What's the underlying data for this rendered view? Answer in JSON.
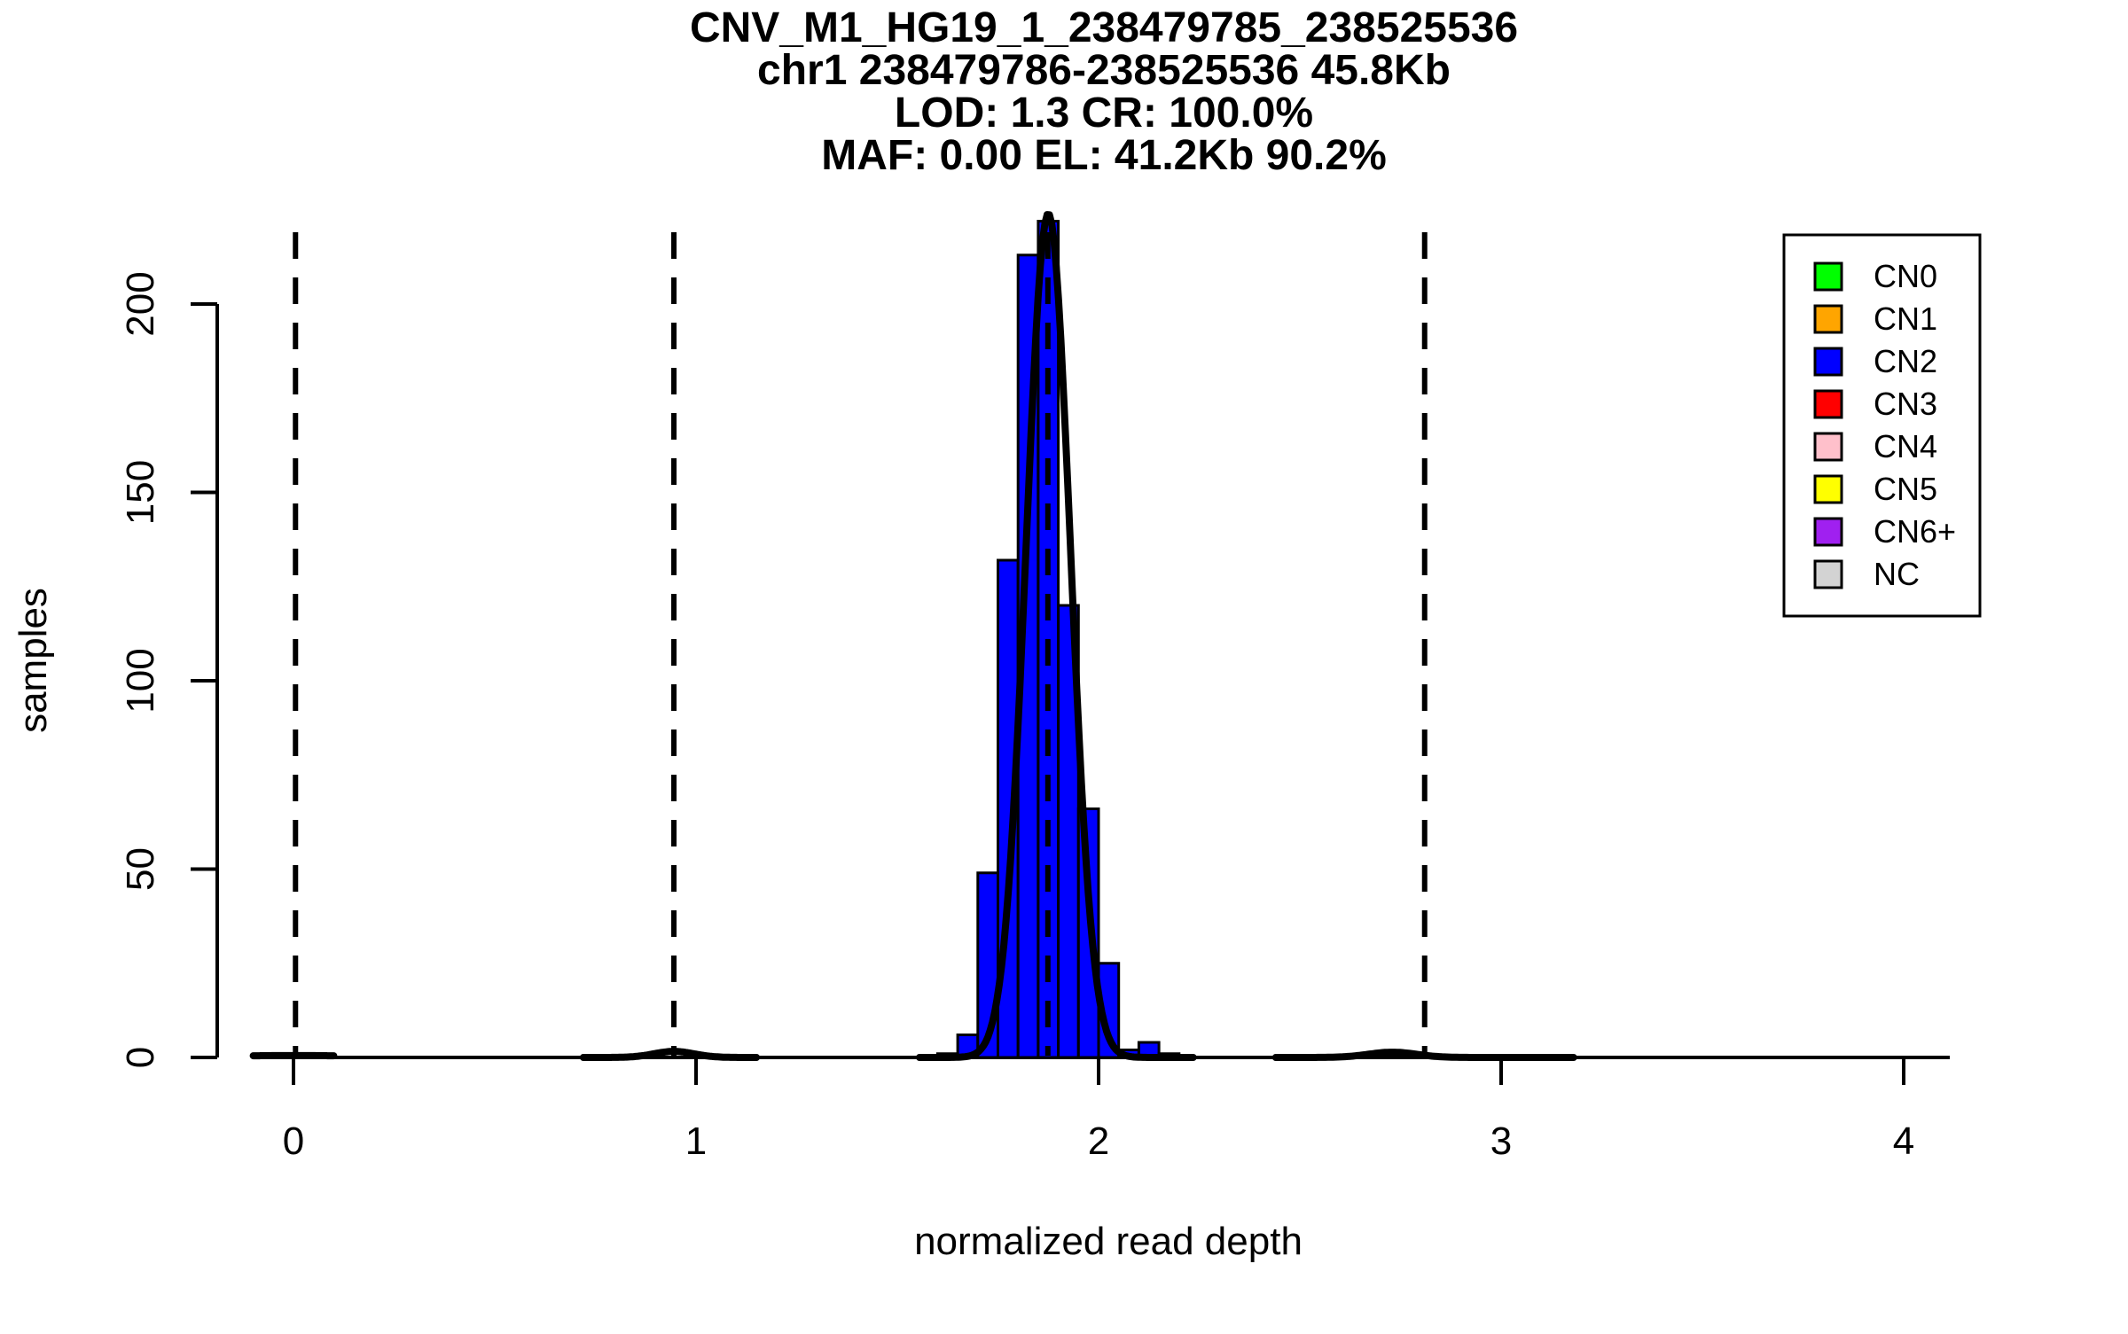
{
  "title": {
    "lines": [
      "CNV_M1_HG19_1_238479785_238525536",
      "chr1 238479786-238525536 45.8Kb",
      "LOD: 1.3 CR: 100.0%",
      "MAF: 0.00 EL: 41.2Kb 90.2%"
    ]
  },
  "axes": {
    "x": {
      "label": "normalized read depth",
      "ticks": [
        0,
        1,
        2,
        3,
        4
      ]
    },
    "y": {
      "label": "samples",
      "ticks": [
        0,
        50,
        100,
        150,
        200
      ]
    }
  },
  "legend": {
    "items": [
      {
        "label": "CN0",
        "color": "#00FF00"
      },
      {
        "label": "CN1",
        "color": "#FFA500"
      },
      {
        "label": "CN2",
        "color": "#0000FF"
      },
      {
        "label": "CN3",
        "color": "#FF0000"
      },
      {
        "label": "CN4",
        "color": "#FFC0CB"
      },
      {
        "label": "CN5",
        "color": "#FFFF00"
      },
      {
        "label": "CN6+",
        "color": "#A020F0"
      },
      {
        "label": "NC",
        "color": "#D3D3D3"
      }
    ]
  },
  "chart_data": {
    "type": "bar",
    "subtype": "histogram",
    "title": "CNV_M1_HG19_1_238479785_238525536 / chr1 238479786-238525536 45.8Kb / LOD: 1.3 CR: 100.0% / MAF: 0.00 EL: 41.2Kb 90.2%",
    "xlabel": "normalized read depth",
    "ylabel": "samples",
    "xlim": [
      -0.09,
      4.11
    ],
    "ylim": [
      0,
      230
    ],
    "x_ticks": [
      0,
      1,
      2,
      3,
      4
    ],
    "y_ticks": [
      0,
      50,
      100,
      150,
      200
    ],
    "grid": false,
    "legend_position": "top-right",
    "bar_color": "#0000FF",
    "bar_outline": "#000000",
    "bin_start": 1.6,
    "bin_width": 0.05,
    "bin_edges": [
      1.6,
      1.65,
      1.7,
      1.75,
      1.8,
      1.85,
      1.9,
      1.95,
      2.0,
      2.05,
      2.1,
      2.15,
      2.2
    ],
    "counts": [
      1,
      6,
      49,
      132,
      213,
      222,
      120,
      66,
      25,
      2,
      4,
      1
    ],
    "cluster_mean_lines": [
      0.005,
      0.945,
      1.874,
      2.81
    ],
    "fit_curves": [
      {
        "name": "CN2-gaussian",
        "center": 1.875,
        "sd": 0.055,
        "peak": 224,
        "range": [
          1.555,
          2.235
        ]
      },
      {
        "name": "CN0-gaussian",
        "center": 0.0,
        "sd": 0.2,
        "peak": 0.5,
        "range": [
          -0.1,
          0.1
        ]
      },
      {
        "name": "CN1-gaussian",
        "center": 0.945,
        "sd": 0.05,
        "peak": 1.6,
        "range": [
          0.72,
          1.15
        ]
      },
      {
        "name": "CN3-gaussian",
        "center": 2.73,
        "sd": 0.06,
        "peak": 1.4,
        "range": [
          2.44,
          3.18
        ]
      }
    ]
  }
}
